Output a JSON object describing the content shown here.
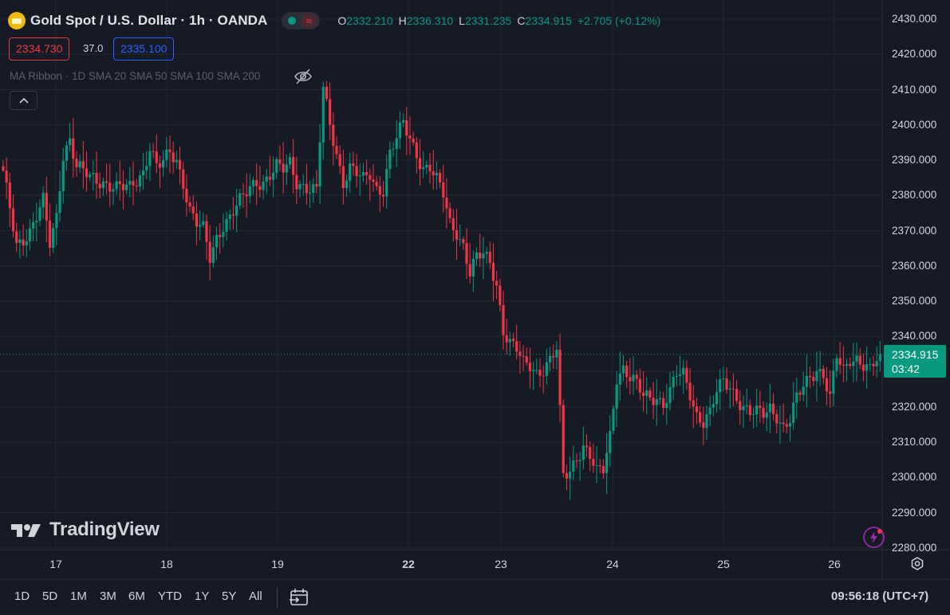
{
  "header": {
    "symbol_title": "Gold Spot / U.S. Dollar · 1h · OANDA",
    "ohlc": [
      {
        "key": "O",
        "value": "2332.210"
      },
      {
        "key": "H",
        "value": "2336.310"
      },
      {
        "key": "L",
        "value": "2331.235"
      },
      {
        "key": "C",
        "value": "2334.915"
      }
    ],
    "change": "+2.705 (+0.12%)",
    "sell_price": "2334.730",
    "spread": "37.0",
    "buy_price": "2335.100",
    "indicator": "MA Ribbon · 1D SMA 20 SMA 50 SMA 100 SMA 200",
    "collapse_glyph": "^"
  },
  "price_axis": {
    "labels": [
      "2430.000",
      "2420.000",
      "2410.000",
      "2400.000",
      "2390.000",
      "2380.000",
      "2370.000",
      "2360.000",
      "2350.000",
      "2340.000",
      "2330.000",
      "2320.000",
      "2310.000",
      "2300.000",
      "2290.000",
      "2280.000"
    ],
    "last_price": "2334.915",
    "countdown": "03:42"
  },
  "time_axis": {
    "labels": [
      {
        "text": "17",
        "bold": false
      },
      {
        "text": "18",
        "bold": false
      },
      {
        "text": "19",
        "bold": false
      },
      {
        "text": "22",
        "bold": true
      },
      {
        "text": "23",
        "bold": false
      },
      {
        "text": "24",
        "bold": false
      },
      {
        "text": "25",
        "bold": false
      },
      {
        "text": "26",
        "bold": false
      }
    ]
  },
  "bottom_bar": {
    "ranges": [
      "1D",
      "5D",
      "1M",
      "3M",
      "6M",
      "YTD",
      "1Y",
      "5Y",
      "All"
    ],
    "clock": "09:56:18 (UTC+7)"
  },
  "branding": {
    "logo_text": "TradingView"
  },
  "colors": {
    "background": "#161a25",
    "up": "#089981",
    "down": "#f23645",
    "grid": "#232733",
    "text": "#d1d4dc",
    "muted": "#5d606b"
  },
  "icons": [
    "gold-coin-icon",
    "market-status-icon",
    "eye-off-icon",
    "chevron-up-icon",
    "settings-icon",
    "date-range-icon",
    "tradingview-logo-icon",
    "bolt-icon"
  ],
  "chart_data": {
    "type": "candlestick",
    "title": "Gold Spot / U.S. Dollar · 1h · OANDA",
    "xlabel": "",
    "ylabel": "",
    "ylim": [
      2280,
      2432
    ],
    "grid": true,
    "x_tick_labels": [
      "17",
      "18",
      "19",
      "22",
      "23",
      "24",
      "25",
      "26"
    ],
    "last_price": 2334.915,
    "anchors": [
      [
        0,
        2386
      ],
      [
        4,
        2366
      ],
      [
        8,
        2370
      ],
      [
        12,
        2378
      ],
      [
        14,
        2366
      ],
      [
        16,
        2374
      ],
      [
        18,
        2392
      ],
      [
        20,
        2396
      ],
      [
        22,
        2388
      ],
      [
        26,
        2385
      ],
      [
        30,
        2384
      ],
      [
        34,
        2382
      ],
      [
        38,
        2382
      ],
      [
        42,
        2387
      ],
      [
        44,
        2394
      ],
      [
        46,
        2388
      ],
      [
        48,
        2389
      ],
      [
        50,
        2392
      ],
      [
        52,
        2390
      ],
      [
        54,
        2384
      ],
      [
        56,
        2376
      ],
      [
        58,
        2372
      ],
      [
        60,
        2370
      ],
      [
        62,
        2362
      ],
      [
        64,
        2368
      ],
      [
        66,
        2372
      ],
      [
        68,
        2374
      ],
      [
        70,
        2377
      ],
      [
        72,
        2379
      ],
      [
        74,
        2382
      ],
      [
        76,
        2384
      ],
      [
        78,
        2384
      ],
      [
        80,
        2386
      ],
      [
        82,
        2388
      ],
      [
        84,
        2387
      ],
      [
        86,
        2389
      ],
      [
        88,
        2384
      ],
      [
        90,
        2383
      ],
      [
        92,
        2382
      ],
      [
        94,
        2381
      ],
      [
        96,
        2410
      ],
      [
        98,
        2400
      ],
      [
        100,
        2392
      ],
      [
        102,
        2384
      ],
      [
        104,
        2388
      ],
      [
        106,
        2386
      ],
      [
        108,
        2384
      ],
      [
        110,
        2386
      ],
      [
        112,
        2382
      ],
      [
        114,
        2382
      ],
      [
        116,
        2392
      ],
      [
        118,
        2396
      ],
      [
        120,
        2400
      ],
      [
        122,
        2396
      ],
      [
        124,
        2392
      ],
      [
        126,
        2388
      ],
      [
        128,
        2388
      ],
      [
        130,
        2384
      ],
      [
        132,
        2380
      ],
      [
        134,
        2372
      ],
      [
        136,
        2370
      ],
      [
        138,
        2366
      ],
      [
        140,
        2358
      ],
      [
        142,
        2362
      ],
      [
        144,
        2363
      ],
      [
        146,
        2361
      ],
      [
        148,
        2355
      ],
      [
        150,
        2342
      ],
      [
        152,
        2338
      ],
      [
        154,
        2336
      ],
      [
        156,
        2332
      ],
      [
        158,
        2332
      ],
      [
        160,
        2330
      ],
      [
        162,
        2331
      ],
      [
        164,
        2333
      ],
      [
        166,
        2336
      ],
      [
        168,
        2300
      ],
      [
        170,
        2302
      ],
      [
        172,
        2306
      ],
      [
        174,
        2309
      ],
      [
        176,
        2306
      ],
      [
        178,
        2301
      ],
      [
        180,
        2302
      ],
      [
        182,
        2312
      ],
      [
        184,
        2329
      ],
      [
        186,
        2331
      ],
      [
        188,
        2328
      ],
      [
        190,
        2326
      ],
      [
        192,
        2323
      ],
      [
        194,
        2323
      ],
      [
        196,
        2323
      ],
      [
        198,
        2321
      ],
      [
        200,
        2324
      ],
      [
        202,
        2329
      ],
      [
        204,
        2329
      ],
      [
        206,
        2324
      ],
      [
        208,
        2318
      ],
      [
        210,
        2316
      ],
      [
        212,
        2318
      ],
      [
        214,
        2324
      ],
      [
        216,
        2327
      ],
      [
        218,
        2326
      ],
      [
        220,
        2323
      ],
      [
        222,
        2320
      ],
      [
        224,
        2318
      ],
      [
        226,
        2318
      ],
      [
        228,
        2318
      ],
      [
        230,
        2320
      ],
      [
        232,
        2318
      ],
      [
        234,
        2314
      ],
      [
        236,
        2316
      ],
      [
        238,
        2322
      ],
      [
        240,
        2326
      ],
      [
        242,
        2329
      ],
      [
        244,
        2331
      ],
      [
        246,
        2329
      ],
      [
        248,
        2322
      ],
      [
        250,
        2334
      ],
      [
        252,
        2330
      ],
      [
        254,
        2334
      ],
      [
        256,
        2334
      ],
      [
        258,
        2332
      ],
      [
        260,
        2330
      ],
      [
        262,
        2333
      ],
      [
        263,
        2334.915
      ]
    ]
  }
}
